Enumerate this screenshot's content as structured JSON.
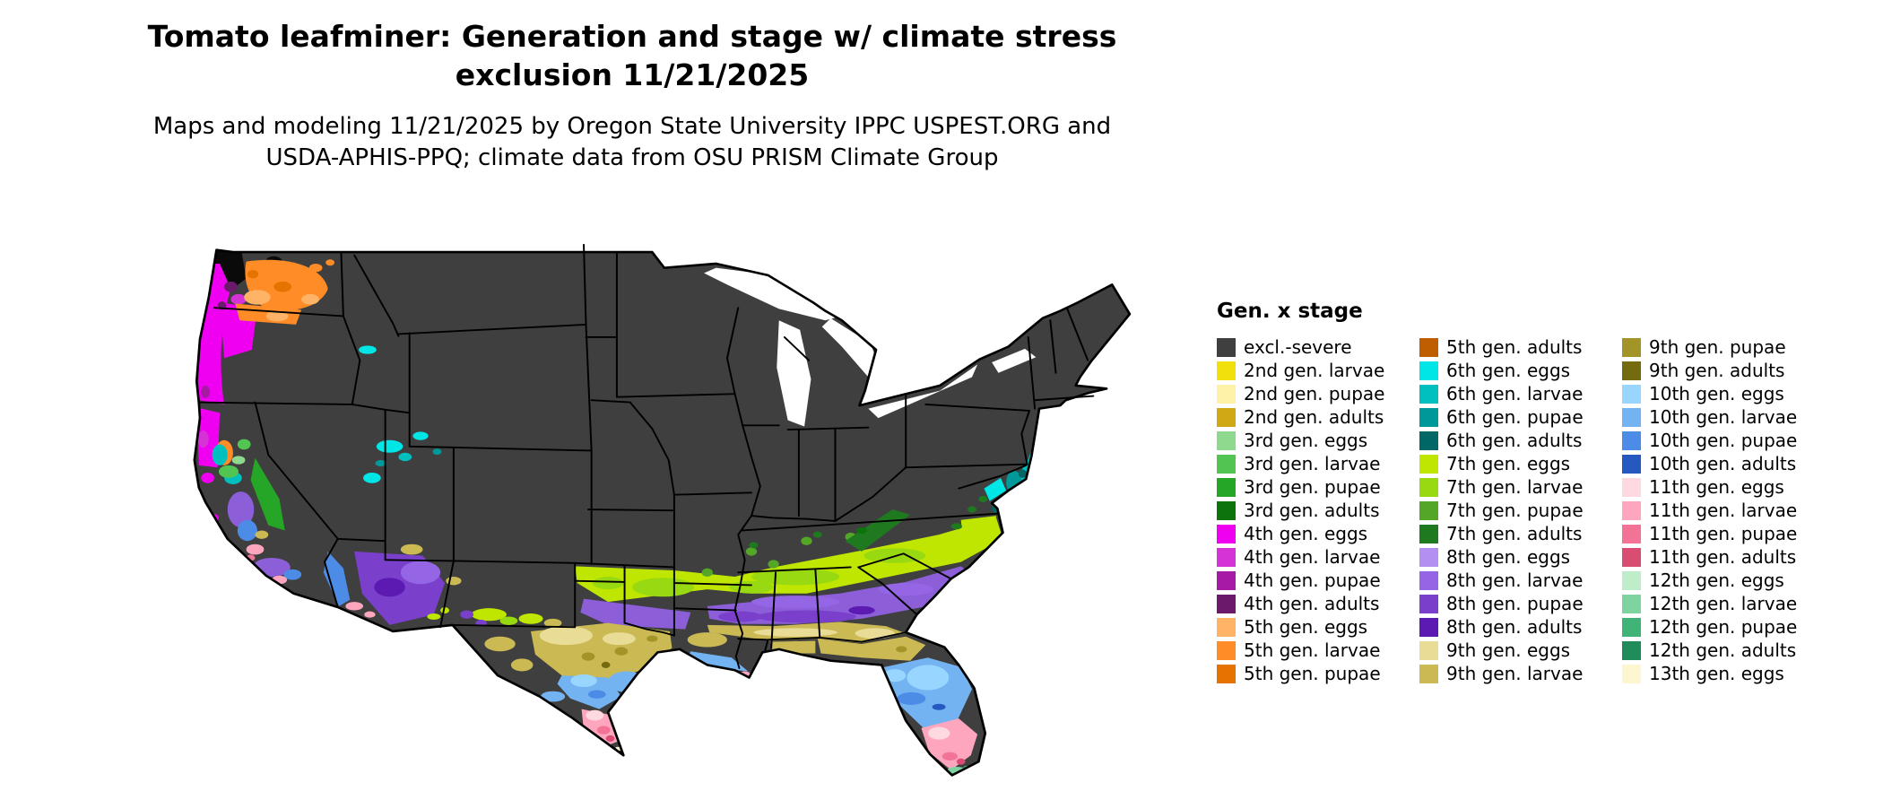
{
  "header": {
    "title_line1": "Tomato leafminer: Generation and stage w/ climate stress",
    "title_line2": "exclusion 11/21/2025",
    "subtitle_line1": "Maps and modeling 11/21/2025 by Oregon State University IPPC USPEST.ORG and",
    "subtitle_line2": "USDA-APHIS-PPQ; climate data from OSU PRISM Climate Group"
  },
  "legend": {
    "title": "Gen. x stage",
    "columns": [
      {
        "items": [
          {
            "label": "excl.-severe",
            "color": "#3f3f3f"
          },
          {
            "label": "2nd gen. larvae",
            "color": "#f2e00d"
          },
          {
            "label": "2nd gen. pupae",
            "color": "#fdf2a8"
          },
          {
            "label": "2nd gen. adults",
            "color": "#cfa816"
          },
          {
            "label": "3rd gen. eggs",
            "color": "#8fd98f"
          },
          {
            "label": "3rd gen. larvae",
            "color": "#52c452"
          },
          {
            "label": "3rd gen. pupae",
            "color": "#26a626"
          },
          {
            "label": "3rd gen. adults",
            "color": "#0d730d"
          },
          {
            "label": "4th gen. eggs",
            "color": "#f000f0"
          },
          {
            "label": "4th gen. larvae",
            "color": "#d633d6"
          },
          {
            "label": "4th gen. pupae",
            "color": "#a61aa6"
          },
          {
            "label": "4th gen. adults",
            "color": "#6b1a6b"
          },
          {
            "label": "5th gen. eggs",
            "color": "#ffb366"
          },
          {
            "label": "5th gen. larvae",
            "color": "#ff8c26"
          },
          {
            "label": "5th gen. pupae",
            "color": "#e67300"
          }
        ]
      },
      {
        "items": [
          {
            "label": "5th gen. adults",
            "color": "#bf5e00"
          },
          {
            "label": "6th gen. eggs",
            "color": "#00e6e6"
          },
          {
            "label": "6th gen. larvae",
            "color": "#00bfbf"
          },
          {
            "label": "6th gen. pupae",
            "color": "#009999"
          },
          {
            "label": "6th gen. adults",
            "color": "#006666"
          },
          {
            "label": "7th gen. eggs",
            "color": "#bfe600"
          },
          {
            "label": "7th gen. larvae",
            "color": "#99d911"
          },
          {
            "label": "7th gen. pupae",
            "color": "#53a626"
          },
          {
            "label": "7th gen. adults",
            "color": "#1f7a1f"
          },
          {
            "label": "8th gen. eggs",
            "color": "#b38ff2"
          },
          {
            "label": "8th gen. larvae",
            "color": "#9466e6"
          },
          {
            "label": "8th gen. pupae",
            "color": "#7a40cc"
          },
          {
            "label": "8th gen. adults",
            "color": "#5c1ab3"
          },
          {
            "label": "9th gen. eggs",
            "color": "#e8dc96"
          },
          {
            "label": "9th gen. larvae",
            "color": "#cbb954"
          }
        ]
      },
      {
        "items": [
          {
            "label": "9th gen. pupae",
            "color": "#a39427"
          },
          {
            "label": "9th gen. adults",
            "color": "#746a0e"
          },
          {
            "label": "10th gen. eggs",
            "color": "#99d6ff"
          },
          {
            "label": "10th gen. larvae",
            "color": "#73b3f2"
          },
          {
            "label": "10th gen. pupae",
            "color": "#4d8ce6"
          },
          {
            "label": "10th gen. adults",
            "color": "#2659bf"
          },
          {
            "label": "11th gen. eggs",
            "color": "#ffd9e0"
          },
          {
            "label": "11th gen. larvae",
            "color": "#ffa6bf"
          },
          {
            "label": "11th gen. pupae",
            "color": "#f27396"
          },
          {
            "label": "11th gen. adults",
            "color": "#d94d73"
          },
          {
            "label": "12th gen. eggs",
            "color": "#bfecc9"
          },
          {
            "label": "12th gen. larvae",
            "color": "#7dd4a0"
          },
          {
            "label": "12th gen. pupae",
            "color": "#40b377"
          },
          {
            "label": "12th gen. adults",
            "color": "#1f8c59"
          },
          {
            "label": "13th gen. eggs",
            "color": "#fdf6d0"
          }
        ]
      }
    ]
  }
}
